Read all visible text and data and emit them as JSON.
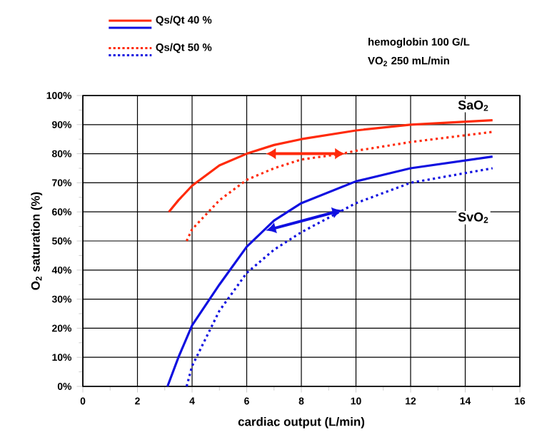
{
  "chart_data": {
    "type": "line",
    "xlabel": "cardiac output (L/min)",
    "ylabel": "O$_{2}$ saturation (%)",
    "xlim": [
      0,
      16
    ],
    "xticks": [
      0,
      2,
      4,
      6,
      8,
      10,
      12,
      14,
      16
    ],
    "ylim": [
      0,
      100
    ],
    "yticks": [
      {
        "value": 0,
        "label": "0%"
      },
      {
        "value": 10,
        "label": "10%"
      },
      {
        "value": 20,
        "label": "20%"
      },
      {
        "value": 30,
        "label": "30%"
      },
      {
        "value": 40,
        "label": "40%"
      },
      {
        "value": 50,
        "label": "50%"
      },
      {
        "value": 60,
        "label": "60%"
      },
      {
        "value": 70,
        "label": "70%"
      },
      {
        "value": 80,
        "label": "80%"
      },
      {
        "value": 90,
        "label": "90%"
      },
      {
        "value": 100,
        "label": "100%"
      }
    ],
    "grid": true,
    "legend": "top left",
    "marker": "none",
    "series": [
      {
        "name": "Qs/Qt 40 %",
        "color": "#ff2a0a",
        "line_style": "solid",
        "x": [
          3.15,
          3.5,
          4,
          5,
          6,
          7,
          8,
          10,
          12,
          15
        ],
        "values": [
          60,
          64,
          69,
          76,
          80,
          83,
          85,
          88,
          90,
          91.5
        ]
      },
      {
        "color": "#1010e0",
        "line_style": "solid",
        "x": [
          3.1,
          3.5,
          4,
          5,
          6,
          7,
          8,
          10,
          12,
          15
        ],
        "values": [
          0,
          10,
          21,
          35,
          48,
          57,
          63,
          70.5,
          75,
          79
        ]
      },
      {
        "name": "Qs/Qt 50 %",
        "color": "#ff2a0a",
        "line_style": "dotted",
        "x": [
          3.8,
          4,
          5,
          6,
          7,
          8,
          9.5,
          10,
          12,
          15
        ],
        "values": [
          50,
          54,
          64,
          71,
          75,
          78,
          80,
          81,
          84,
          87.5
        ]
      },
      {
        "color": "#1010e0",
        "line_style": "dotted",
        "x": [
          3.8,
          4,
          5,
          6,
          7,
          8,
          9.5,
          10,
          12,
          15
        ],
        "values": [
          0,
          7,
          26,
          39,
          47,
          53,
          60.5,
          63,
          70,
          75
        ]
      }
    ],
    "annotations": [
      "SaO$_{2}$",
      "SvO$_{2}$",
      "hemoglobin 100 G/L",
      "VO$_{2}$ 250 mL/min"
    ]
  }
}
